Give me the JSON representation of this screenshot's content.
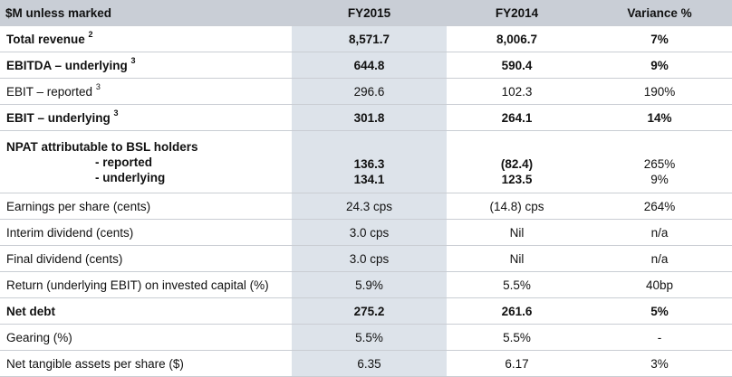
{
  "header": {
    "label": "$M unless marked",
    "fy2015": "FY2015",
    "fy2014": "FY2014",
    "variance": "Variance %"
  },
  "rows": [
    {
      "label": "Total revenue",
      "sup": "2",
      "fy2015": "8,571.7",
      "fy2014": "8,006.7",
      "variance": "7%"
    },
    {
      "label": "EBITDA – underlying",
      "sup": "3",
      "fy2015": "644.8",
      "fy2014": "590.4",
      "variance": "9%"
    },
    {
      "label": "EBIT – reported",
      "sup": "3",
      "fy2015": "296.6",
      "fy2014": "102.3",
      "variance": "190%"
    },
    {
      "label": "EBIT – underlying",
      "sup": "3",
      "fy2015": "301.8",
      "fy2014": "264.1",
      "variance": "14%"
    },
    {
      "label": "Earnings per share (cents)",
      "fy2015": "24.3 cps",
      "fy2014": "(14.8) cps",
      "variance": "264%"
    },
    {
      "label": "Interim dividend (cents)",
      "fy2015": "3.0 cps",
      "fy2014": "Nil",
      "variance": "n/a"
    },
    {
      "label": "Final dividend (cents)",
      "fy2015": "3.0 cps",
      "fy2014": "Nil",
      "variance": "n/a"
    },
    {
      "label": "Return (underlying EBIT) on invested capital (%)",
      "fy2015": "5.9%",
      "fy2014": "5.5%",
      "variance": "40bp"
    },
    {
      "label": "Net debt",
      "fy2015": "275.2",
      "fy2014": "261.6",
      "variance": "5%"
    },
    {
      "label": "Gearing (%)",
      "fy2015": "5.5%",
      "fy2014": "5.5%",
      "variance": "-"
    },
    {
      "label": "Net tangible assets per share ($)",
      "fy2015": "6.35",
      "fy2014": "6.17",
      "variance": "3%"
    }
  ],
  "npat": {
    "label": "NPAT attributable to BSL holders",
    "reported_label": "- reported",
    "underlying_label": "- underlying",
    "fy2015_reported": "136.3",
    "fy2015_underlying": "134.1",
    "fy2014_reported": "(82.4)",
    "fy2014_underlying": "123.5",
    "variance_reported": "265%",
    "variance_underlying": "9%"
  }
}
